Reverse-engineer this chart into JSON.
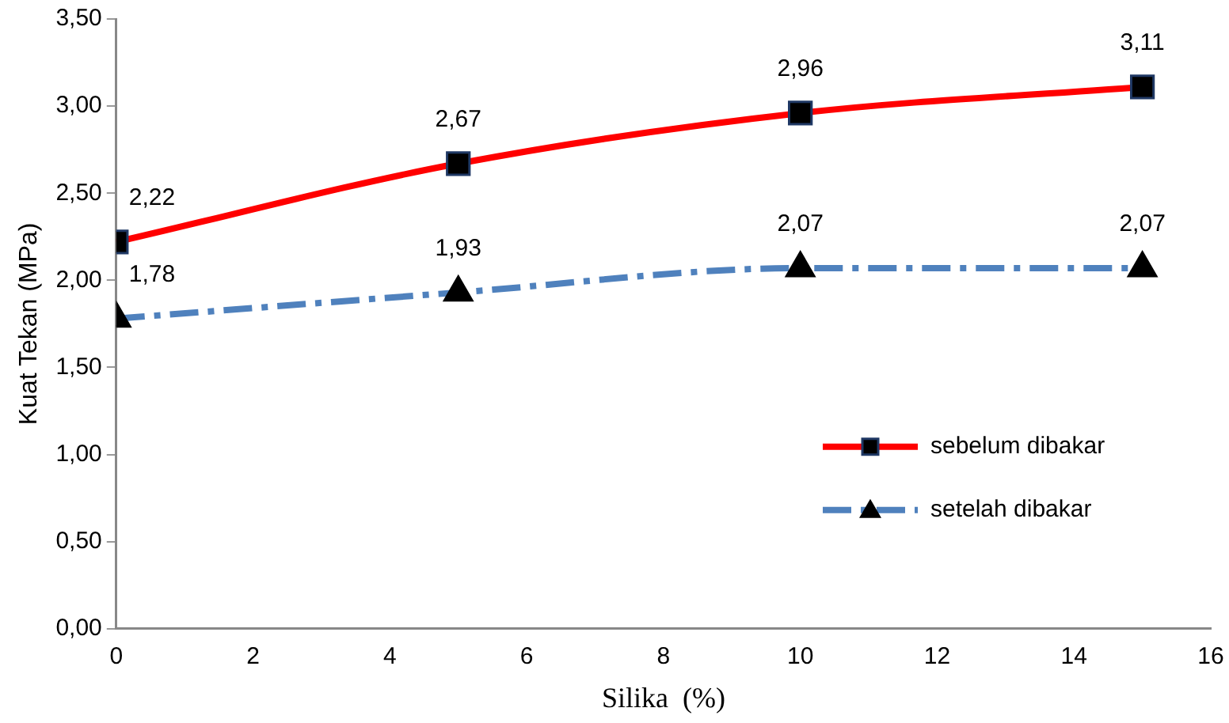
{
  "chart_data": {
    "type": "line",
    "xlabel": "Silika  (%)",
    "ylabel": "Kuat Tekan (MPa)",
    "x": [
      0,
      5,
      10,
      15
    ],
    "series": [
      {
        "name": "sebelum dibakar",
        "color": "#ff0000",
        "marker": "square",
        "line_style": "solid",
        "values": [
          2.22,
          2.67,
          2.96,
          3.11
        ],
        "value_labels": [
          "2,22",
          "2,67",
          "2,96",
          "3,11"
        ]
      },
      {
        "name": "setelah dibakar",
        "color": "#4f81bd",
        "marker": "triangle",
        "line_style": "dashed",
        "values": [
          1.78,
          1.93,
          2.07,
          2.07
        ],
        "value_labels": [
          "1,78",
          "1,93",
          "2,07",
          "2,07"
        ]
      }
    ],
    "xlim": [
      0,
      16
    ],
    "xticks": [
      0,
      2,
      4,
      6,
      8,
      10,
      12,
      14,
      16
    ],
    "ylim": [
      0,
      3.5
    ],
    "yticks": [
      {
        "value": 0,
        "label": "0,00"
      },
      {
        "value": 0.5,
        "label": "0,50"
      },
      {
        "value": 1,
        "label": "1,00"
      },
      {
        "value": 1.5,
        "label": "1,50"
      },
      {
        "value": 2,
        "label": "2,00"
      },
      {
        "value": 2.5,
        "label": "2,50"
      },
      {
        "value": 3,
        "label": "3,00"
      },
      {
        "value": 3.5,
        "label": "3,50"
      }
    ],
    "grid": false,
    "legend": "bottom right"
  }
}
